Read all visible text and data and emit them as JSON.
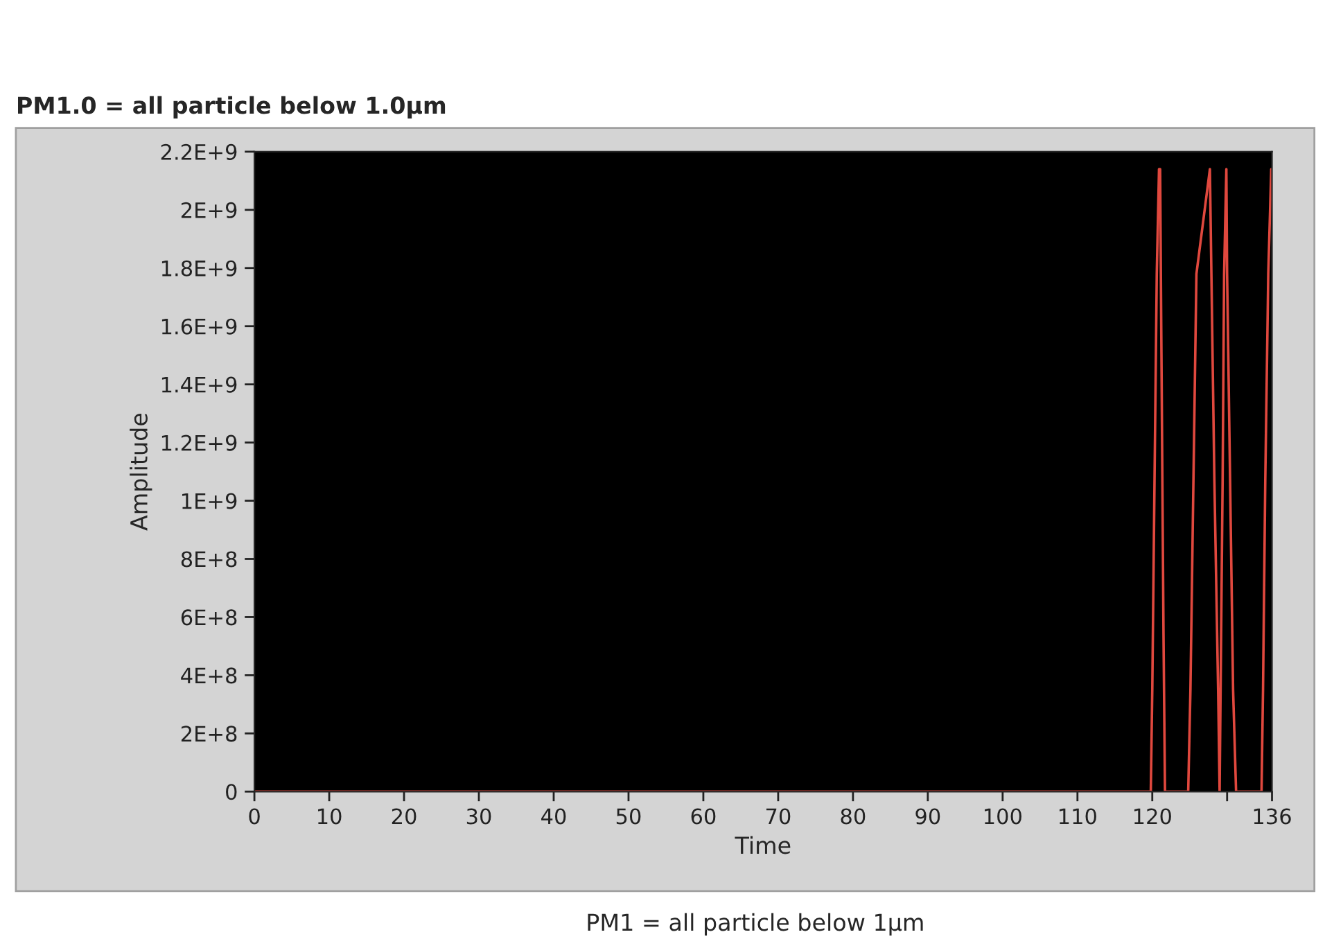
{
  "chart_data": {
    "type": "line",
    "title": "PM1.0 = all particle below 1.0µm",
    "xlabel": "Time",
    "ylabel": "Amplitude",
    "annotations": [
      "PM1 = all particle below 1µm"
    ],
    "series": [
      {
        "color": "#e0483e",
        "x": [
          0,
          119.8,
          120.0,
          120.3,
          120.6,
          120.9,
          121.05,
          121.2,
          121.5,
          121.7,
          124.8,
          125.1,
          125.5,
          125.9,
          127.7,
          127.9,
          128.3,
          128.8,
          129.0,
          129.4,
          129.6,
          129.9,
          130.0,
          130.4,
          130.8,
          131.2,
          134.6,
          134.8,
          135.1,
          135.5,
          135.9,
          136
        ],
        "values": [
          0,
          0,
          350000000,
          1070000000,
          1780000000,
          2140000000,
          2140000000,
          1590000000,
          540000000,
          0,
          0,
          350000000,
          1070000000,
          1780000000,
          2140000000,
          1780000000,
          1070000000,
          350000000,
          0,
          1070000000,
          1780000000,
          2140000000,
          1780000000,
          1070000000,
          350000000,
          0,
          0,
          350000000,
          1070000000,
          1780000000,
          2140000000,
          2140000000
        ]
      }
    ],
    "xlim": [
      0,
      136
    ],
    "xticks": [
      0,
      10,
      20,
      30,
      40,
      50,
      60,
      70,
      80,
      90,
      100,
      110,
      120,
      {
        "value": 130,
        "label": null
      },
      136
    ],
    "ylim": [
      0,
      2200000000
    ],
    "yticks": [
      {
        "value": 0,
        "label": "0"
      },
      {
        "value": 200000000,
        "label": "2E+8"
      },
      {
        "value": 400000000,
        "label": "4E+8"
      },
      {
        "value": 600000000,
        "label": "6E+8"
      },
      {
        "value": 800000000,
        "label": "8E+8"
      },
      {
        "value": 1000000000,
        "label": "1E+9"
      },
      {
        "value": 1200000000,
        "label": "1.2E+9"
      },
      {
        "value": 1400000000,
        "label": "1.4E+9"
      },
      {
        "value": 1600000000,
        "label": "1.6E+9"
      },
      {
        "value": 1800000000,
        "label": "1.8E+9"
      },
      {
        "value": 2000000000,
        "label": "2E+9"
      },
      {
        "value": 2200000000,
        "label": "2.2E+9"
      }
    ],
    "grid": false,
    "legend": false,
    "marker": "none",
    "line_style": "solid"
  }
}
